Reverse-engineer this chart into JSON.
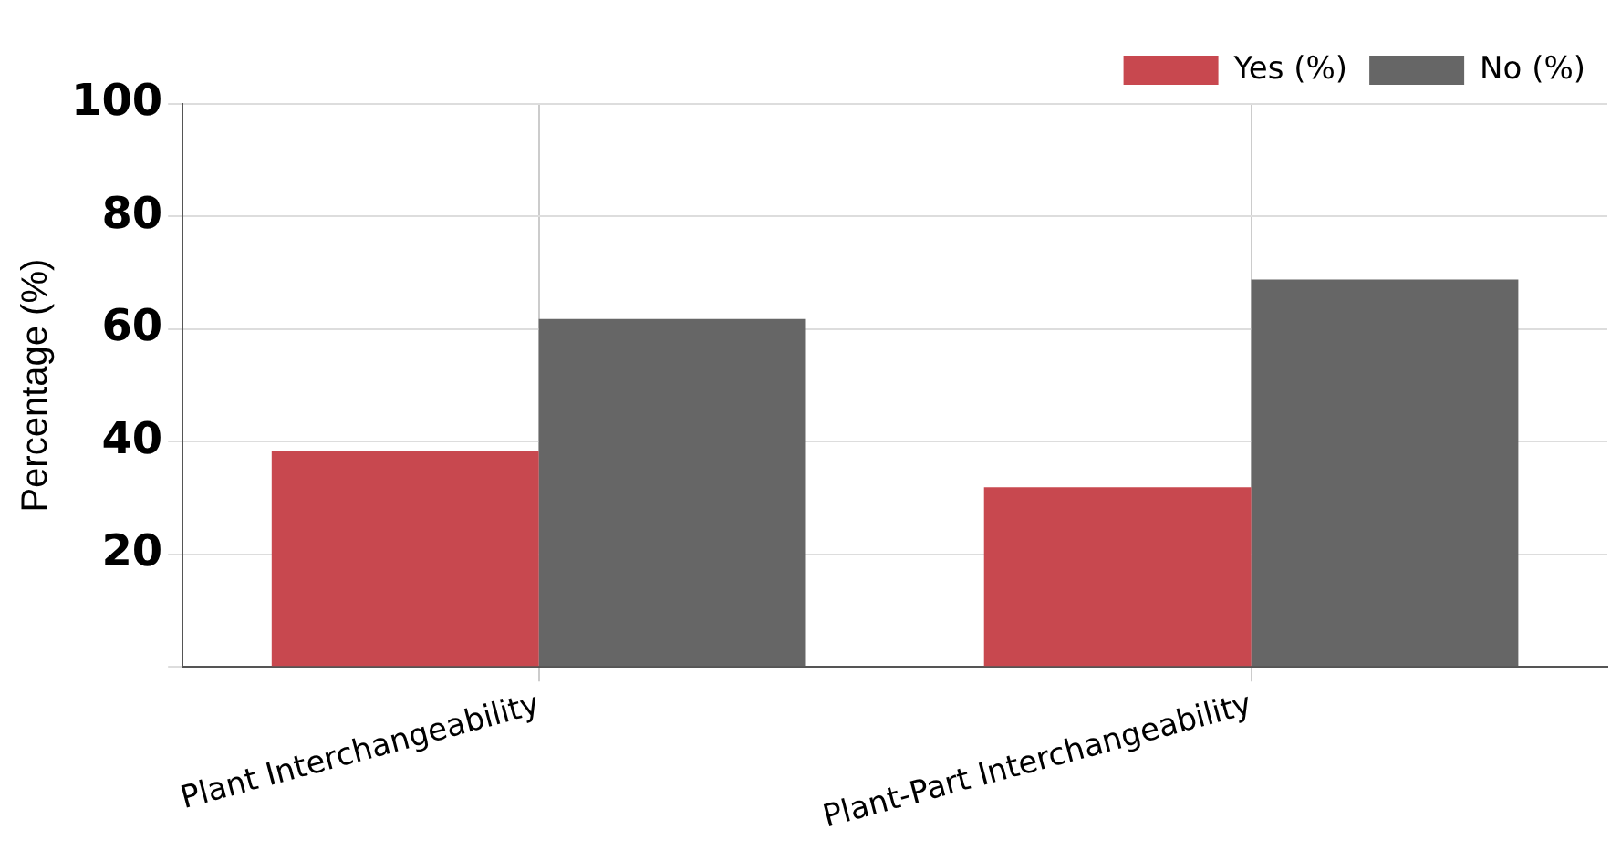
{
  "chart_data": {
    "type": "bar",
    "ylabel": "Percentage (%)",
    "categories": [
      "Plant Interchangeability",
      "Plant-Part Interchangeability"
    ],
    "series": [
      {
        "name": "Yes (%)",
        "color": "#c8484f",
        "values": [
          38.4,
          31.9
        ]
      },
      {
        "name": "No (%)",
        "color": "#666666",
        "values": [
          61.8,
          68.8
        ]
      }
    ],
    "ylim": [
      0,
      100
    ],
    "yticks": [
      {
        "value": 0,
        "label": null
      },
      20,
      40,
      60,
      80,
      100
    ],
    "grid": true,
    "legend": "top right"
  }
}
